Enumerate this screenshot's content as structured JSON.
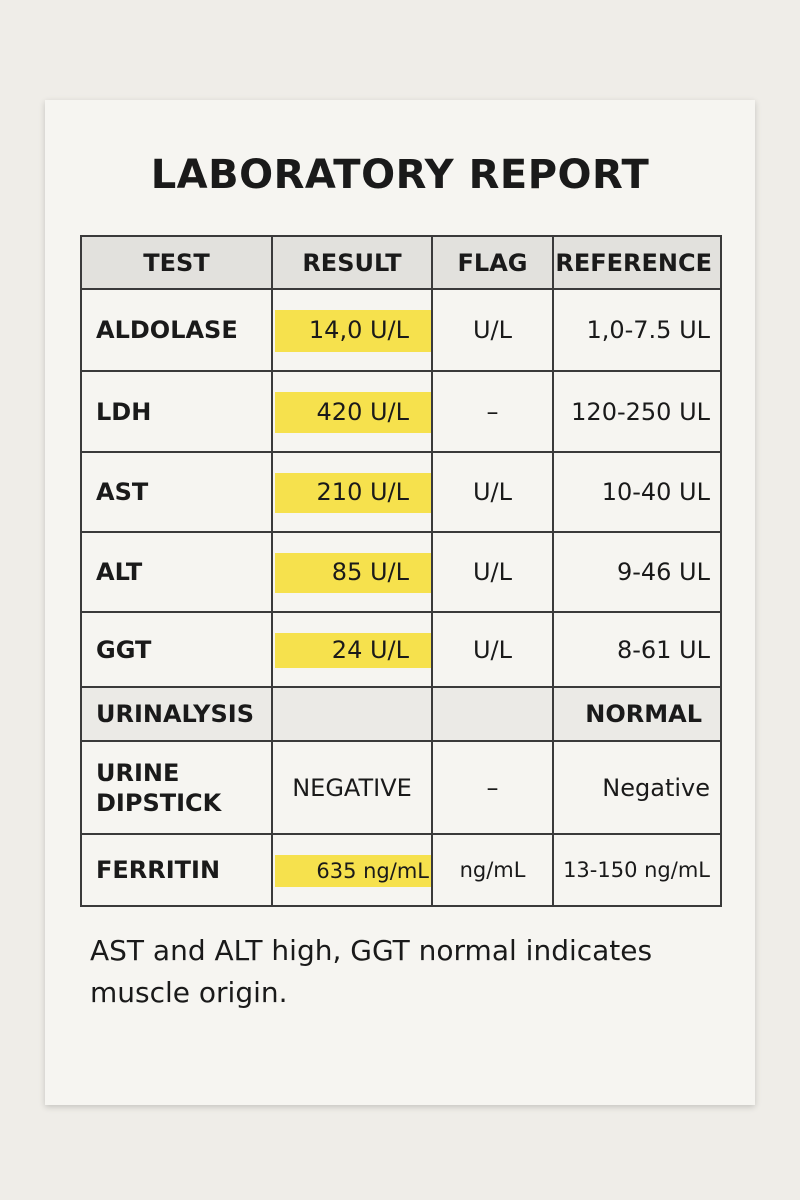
{
  "title": "LABORATORY REPORT",
  "table": {
    "header": {
      "test": "TEST",
      "result": "RESULT",
      "flag": "FLAG",
      "reference": "REFERENCE"
    },
    "rows": [
      {
        "test": "ALDOLASE",
        "result": "14,0 U/L",
        "flag": "U/L",
        "reference": "1,0-7.5 UL"
      },
      {
        "test": "LDH",
        "result": "420 U/L",
        "flag": "–",
        "reference": "120-250 UL"
      },
      {
        "test": "AST",
        "result": "210 U/L",
        "flag": "U/L",
        "reference": "10-40 UL"
      },
      {
        "test": "ALT",
        "result": "85 U/L",
        "flag": "U/L",
        "reference": "9-46 UL"
      },
      {
        "test": "GGT",
        "result": "24 U/L",
        "flag": "U/L",
        "reference": "8-61 UL"
      },
      {
        "test": "URINALYSIS",
        "reference": "NORMAL"
      },
      {
        "test": "URINE DIPSTICK",
        "result": "NEGATIVE",
        "flag": "–",
        "reference": "Negative"
      },
      {
        "test": "FERRITIN",
        "result": "635 ng/mL",
        "flag": "ng/mL",
        "reference": "13-150 ng/mL"
      }
    ]
  },
  "note": "AST and ALT high, GGT normal indicates muscle origin."
}
